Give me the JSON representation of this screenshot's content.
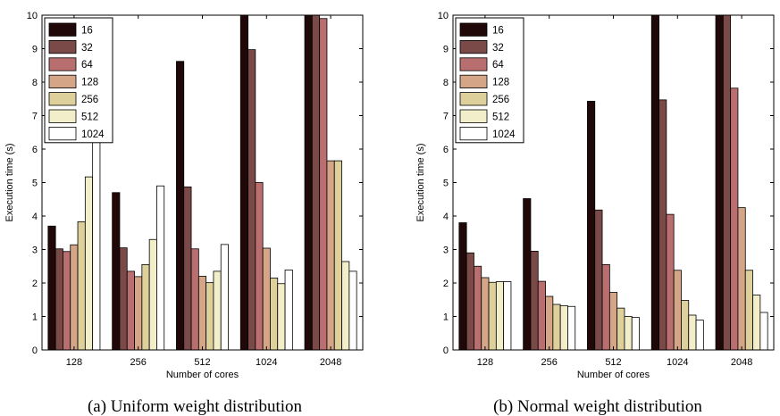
{
  "chart_data": [
    {
      "type": "bar",
      "caption": "(a) Uniform weight distribution",
      "xlabel": "Number of cores",
      "ylabel": "Execution time (s)",
      "ylim": [
        0,
        10
      ],
      "yticks": [
        0,
        1,
        2,
        3,
        4,
        5,
        6,
        7,
        8,
        9,
        10
      ],
      "categories": [
        "128",
        "256",
        "512",
        "1024",
        "2048"
      ],
      "legend_position": "top-left",
      "series": [
        {
          "name": "16",
          "color": "#200808",
          "values": [
            3.7,
            4.7,
            8.62,
            10.0,
            10.0
          ]
        },
        {
          "name": "32",
          "color": "#7a4a48",
          "values": [
            3.02,
            3.05,
            4.87,
            8.97,
            10.0
          ]
        },
        {
          "name": "64",
          "color": "#b96e6f",
          "values": [
            2.94,
            2.35,
            3.02,
            5.0,
            9.9
          ]
        },
        {
          "name": "128",
          "color": "#d4a687",
          "values": [
            3.14,
            2.19,
            2.2,
            3.04,
            5.65
          ]
        },
        {
          "name": "256",
          "color": "#ddd09a",
          "values": [
            3.83,
            2.55,
            2.01,
            2.15,
            5.65
          ]
        },
        {
          "name": "512",
          "color": "#f1eec9",
          "values": [
            5.17,
            3.3,
            2.35,
            1.98,
            2.64
          ]
        },
        {
          "name": "1024",
          "color": "#ffffff",
          "values": [
            6.5,
            4.9,
            3.15,
            2.39,
            2.35
          ]
        }
      ]
    },
    {
      "type": "bar",
      "caption": "(b) Normal weight distribution",
      "xlabel": "Number of cores",
      "ylabel": "Execution time (s)",
      "ylim": [
        0,
        10
      ],
      "yticks": [
        0,
        1,
        2,
        3,
        4,
        5,
        6,
        7,
        8,
        9,
        10
      ],
      "categories": [
        "128",
        "256",
        "512",
        "1024",
        "2048"
      ],
      "legend_position": "top-left",
      "series": [
        {
          "name": "16",
          "color": "#200808",
          "values": [
            3.8,
            4.52,
            7.43,
            10.0,
            10.0
          ]
        },
        {
          "name": "32",
          "color": "#7a4a48",
          "values": [
            2.9,
            2.95,
            4.18,
            7.47,
            10.0
          ]
        },
        {
          "name": "64",
          "color": "#b96e6f",
          "values": [
            2.5,
            2.05,
            2.55,
            4.05,
            7.82
          ]
        },
        {
          "name": "128",
          "color": "#d4a687",
          "values": [
            2.16,
            1.6,
            1.72,
            2.38,
            4.25
          ]
        },
        {
          "name": "256",
          "color": "#ddd09a",
          "values": [
            2.02,
            1.36,
            1.25,
            1.48,
            2.38
          ]
        },
        {
          "name": "512",
          "color": "#f1eec9",
          "values": [
            2.04,
            1.32,
            1.0,
            1.04,
            1.64
          ]
        },
        {
          "name": "1024",
          "color": "#ffffff",
          "values": [
            2.04,
            1.3,
            0.97,
            0.89,
            1.12
          ]
        }
      ]
    }
  ]
}
